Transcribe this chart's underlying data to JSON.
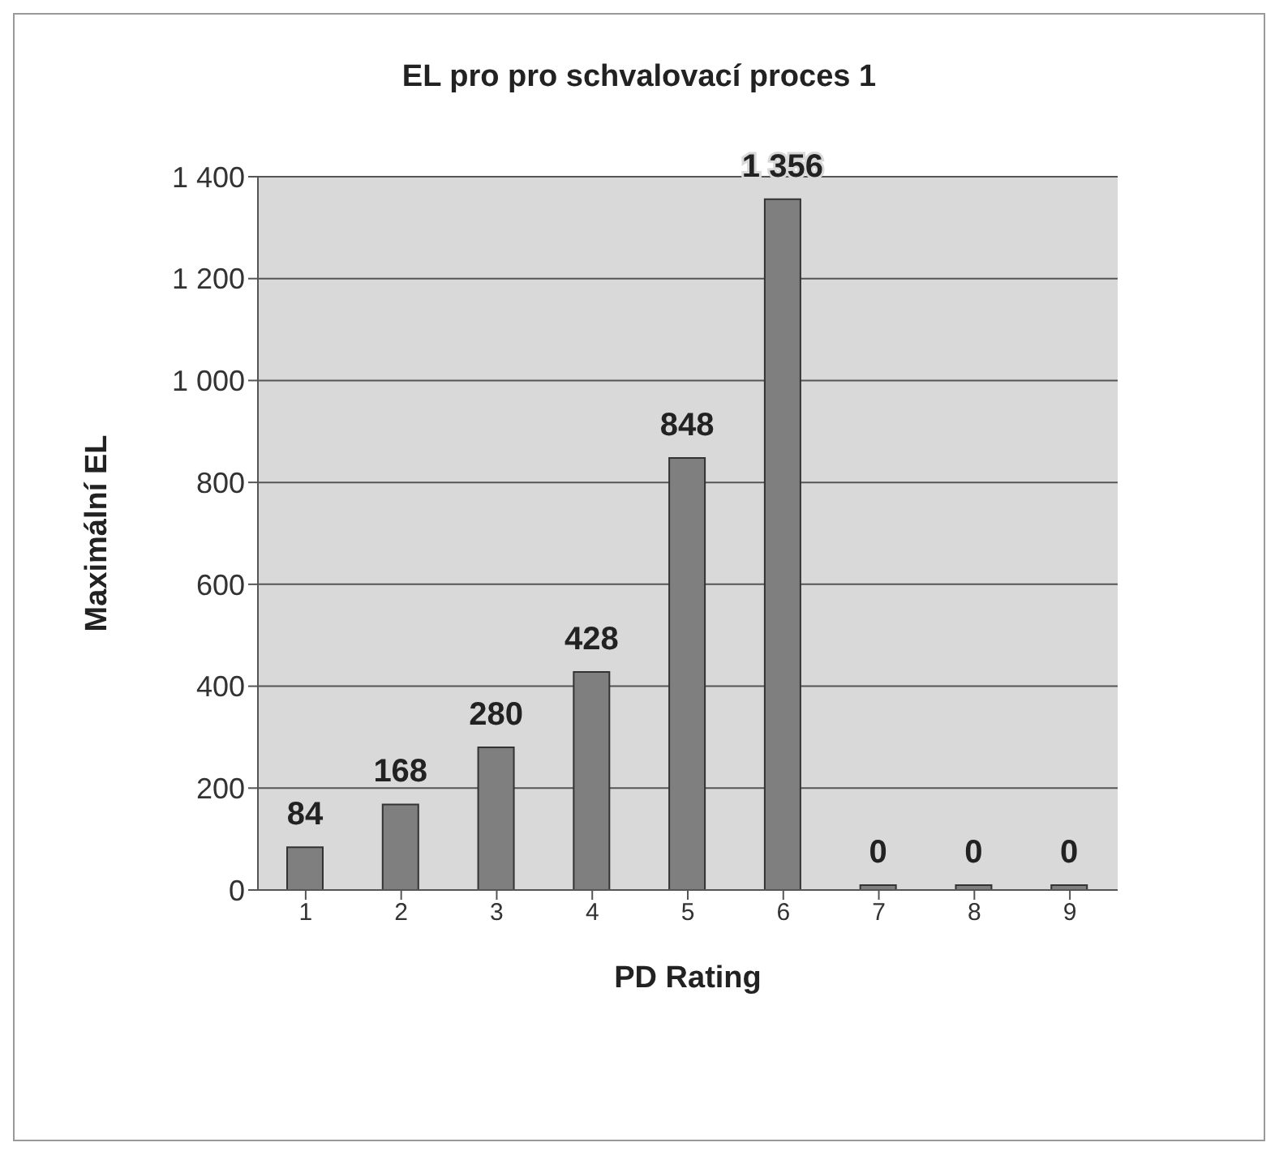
{
  "chart_data": {
    "type": "bar",
    "title": "EL pro pro schvalovací proces 1",
    "xlabel": "PD Rating",
    "ylabel": "Maximální EL",
    "categories": [
      "1",
      "2",
      "3",
      "4",
      "5",
      "6",
      "7",
      "8",
      "9"
    ],
    "values": [
      84,
      168,
      280,
      428,
      848,
      1356,
      0,
      0,
      0
    ],
    "value_labels": [
      "84",
      "168",
      "280",
      "428",
      "848",
      "1 356",
      "0",
      "0",
      "0"
    ],
    "color": "#7f7f7f",
    "ylim": [
      0,
      1400
    ],
    "yticks": [
      0,
      200,
      400,
      600,
      800,
      {
        "value": 1000,
        "label": "1 000"
      },
      {
        "value": 1200,
        "label": "1 200"
      },
      {
        "value": 1400,
        "label": "1 400"
      }
    ],
    "grid": "y"
  }
}
